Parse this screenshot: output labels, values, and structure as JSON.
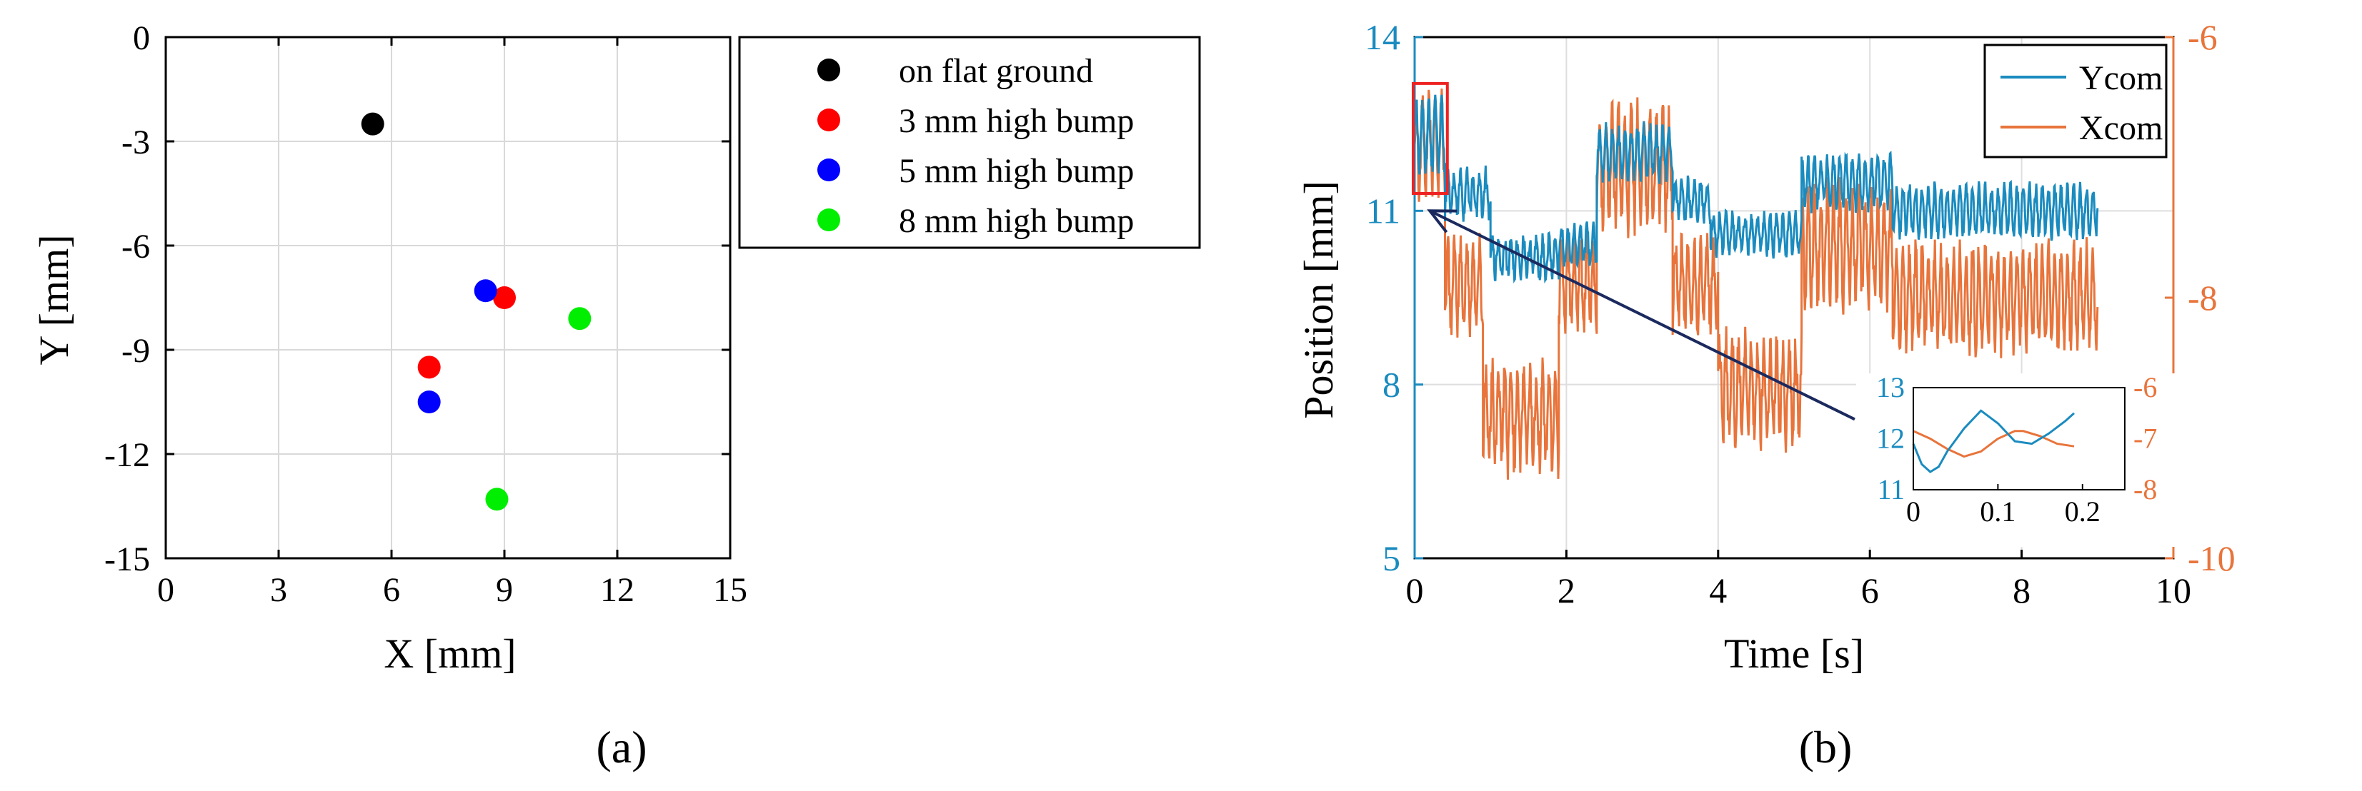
{
  "chart_data": [
    {
      "type": "scatter",
      "panel_label": "(a)",
      "title": "",
      "xlabel": "X [mm]",
      "ylabel": "Y [mm]",
      "xlim": [
        0,
        15
      ],
      "ylim": [
        -15,
        0
      ],
      "xticks": [
        0,
        3,
        6,
        9,
        12,
        15
      ],
      "yticks": [
        0,
        -3,
        -6,
        -9,
        -12,
        -15
      ],
      "grid": true,
      "legend_position": "outside-right",
      "series": [
        {
          "name": "on flat ground",
          "color": "#000000",
          "points": [
            [
              5.5,
              -2.5
            ]
          ]
        },
        {
          "name": "3 mm high bump",
          "color": "#ff0000",
          "points": [
            [
              9.0,
              -7.5
            ],
            [
              7.0,
              -9.5
            ]
          ]
        },
        {
          "name": "5 mm high bump",
          "color": "#0000ff",
          "points": [
            [
              8.5,
              -7.3
            ],
            [
              7.0,
              -10.5
            ]
          ]
        },
        {
          "name": "8 mm high bump",
          "color": "#00ee00",
          "points": [
            [
              11.0,
              -8.1
            ],
            [
              8.8,
              -13.3
            ]
          ]
        }
      ]
    },
    {
      "type": "line",
      "panel_label": "(b)",
      "title": "",
      "xlabel": "Time [s]",
      "ylabel": "Position [mm]",
      "xlim": [
        0,
        10
      ],
      "xticks": [
        0,
        2,
        4,
        6,
        8,
        10
      ],
      "ylim_left": [
        5,
        14
      ],
      "yticks_left": [
        5,
        8,
        11,
        14
      ],
      "ylim_right": [
        -10,
        -6
      ],
      "yticks_right": [
        -6,
        -8,
        -10
      ],
      "grid": true,
      "legend_position": "top-right",
      "colors": {
        "ycom": "#1a8bbf",
        "xcom": "#e8743b",
        "highlight": "#ee2222",
        "arrow": "#1b2a5e"
      },
      "series": [
        {
          "name": "Ycom",
          "axis": "left",
          "color": "#1a8bbf",
          "segments": [
            {
              "t": [
                0.0,
                0.4
              ],
              "base": 12.3,
              "amp": 0.55,
              "noise": 0.35
            },
            {
              "t": [
                0.4,
                1.0
              ],
              "base": 11.3,
              "amp": 0.35,
              "noise": 0.3
            },
            {
              "t": [
                1.0,
                1.9
              ],
              "base": 10.2,
              "amp": 0.3,
              "noise": 0.3
            },
            {
              "t": [
                1.9,
                2.4
              ],
              "base": 10.4,
              "amp": 0.3,
              "noise": 0.25
            },
            {
              "t": [
                2.4,
                3.4
              ],
              "base": 12.0,
              "amp": 0.4,
              "noise": 0.3
            },
            {
              "t": [
                3.4,
                3.9
              ],
              "base": 11.2,
              "amp": 0.3,
              "noise": 0.25
            },
            {
              "t": [
                3.9,
                5.1
              ],
              "base": 10.6,
              "amp": 0.3,
              "noise": 0.25
            },
            {
              "t": [
                5.1,
                6.3
              ],
              "base": 11.5,
              "amp": 0.4,
              "noise": 0.3
            },
            {
              "t": [
                6.3,
                9.0
              ],
              "base": 11.0,
              "amp": 0.4,
              "noise": 0.25
            }
          ]
        },
        {
          "name": "Xcom",
          "axis": "right",
          "color": "#e8743b",
          "segments": [
            {
              "t": [
                0.0,
                0.4
              ],
              "base": -6.8,
              "amp": 0.35,
              "noise": 0.3
            },
            {
              "t": [
                0.4,
                0.9
              ],
              "base": -7.9,
              "amp": 0.3,
              "noise": 0.25
            },
            {
              "t": [
                0.9,
                1.9
              ],
              "base": -8.9,
              "amp": 0.35,
              "noise": 0.3
            },
            {
              "t": [
                1.9,
                2.4
              ],
              "base": -7.9,
              "amp": 0.3,
              "noise": 0.25
            },
            {
              "t": [
                2.4,
                3.4
              ],
              "base": -7.0,
              "amp": 0.4,
              "noise": 0.3
            },
            {
              "t": [
                3.4,
                4.0
              ],
              "base": -7.9,
              "amp": 0.3,
              "noise": 0.25
            },
            {
              "t": [
                4.0,
                5.1
              ],
              "base": -8.7,
              "amp": 0.35,
              "noise": 0.3
            },
            {
              "t": [
                5.1,
                6.3
              ],
              "base": -7.6,
              "amp": 0.4,
              "noise": 0.3
            },
            {
              "t": [
                6.3,
                9.0
              ],
              "base": -8.0,
              "amp": 0.35,
              "noise": 0.25
            }
          ]
        }
      ],
      "highlight_region": {
        "t": [
          0.0,
          0.45
        ],
        "y": [
          11.3,
          13.2
        ]
      },
      "arrow": {
        "from_t": 5.8,
        "from_y": 7.4,
        "to_t": 0.2,
        "to_y": 11.0
      },
      "inset": {
        "xlim": [
          0,
          0.25
        ],
        "xticks": [
          0,
          0.1,
          0.2
        ],
        "ylim_left": [
          11,
          13
        ],
        "yticks_left": [
          11,
          12,
          13
        ],
        "ylim_right": [
          -8,
          -6
        ],
        "yticks_right": [
          -6,
          -7,
          -8
        ],
        "Ycom": {
          "t": [
            0.0,
            0.01,
            0.02,
            0.03,
            0.04,
            0.06,
            0.08,
            0.1,
            0.12,
            0.14,
            0.16,
            0.18,
            0.19
          ],
          "y": [
            11.9,
            11.5,
            11.35,
            11.45,
            11.75,
            12.2,
            12.55,
            12.3,
            11.95,
            11.9,
            12.1,
            12.35,
            12.5
          ]
        },
        "Xcom": {
          "t": [
            0.0,
            0.02,
            0.04,
            0.06,
            0.08,
            0.1,
            0.12,
            0.13,
            0.15,
            0.17,
            0.19
          ],
          "y": [
            -6.85,
            -7.0,
            -7.2,
            -7.35,
            -7.25,
            -7.0,
            -6.85,
            -6.85,
            -6.95,
            -7.1,
            -7.15
          ]
        }
      }
    }
  ]
}
